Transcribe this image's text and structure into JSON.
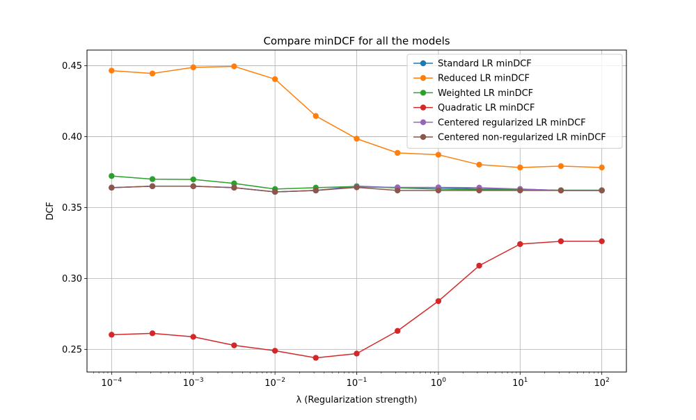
{
  "chart_data": {
    "type": "line",
    "title": "Compare minDCF for all the models",
    "xlabel": "λ (Regularization strength)",
    "ylabel": "DCF",
    "xscale": "log",
    "xlim": [
      5e-05,
      200
    ],
    "ylim": [
      0.234,
      0.461
    ],
    "grid": true,
    "legend_position": "top-right",
    "x": [
      0.0001,
      0.000316,
      0.001,
      0.00316,
      0.01,
      0.0316,
      0.1,
      0.316,
      1,
      3.16,
      10,
      31.6,
      100
    ],
    "xticks": [
      {
        "value": 0.0001,
        "base": "10",
        "exp": "−4"
      },
      {
        "value": 0.001,
        "base": "10",
        "exp": "−3"
      },
      {
        "value": 0.01,
        "base": "10",
        "exp": "−2"
      },
      {
        "value": 0.1,
        "base": "10",
        "exp": "−1"
      },
      {
        "value": 1,
        "base": "10",
        "exp": "0"
      },
      {
        "value": 10,
        "base": "10",
        "exp": "1"
      },
      {
        "value": 100,
        "base": "10",
        "exp": "2"
      }
    ],
    "yticks": [
      {
        "value": 0.25,
        "label": "0.25"
      },
      {
        "value": 0.3,
        "label": "0.30"
      },
      {
        "value": 0.35,
        "label": "0.35"
      },
      {
        "value": 0.4,
        "label": "0.40"
      },
      {
        "value": 0.45,
        "label": "0.45"
      }
    ],
    "series": [
      {
        "name": "Standard LR minDCF",
        "color": "#1f77b4",
        "values": [
          0.364,
          0.365,
          0.365,
          0.364,
          0.361,
          0.362,
          0.365,
          0.364,
          0.364,
          0.363,
          0.363,
          0.362,
          0.362
        ]
      },
      {
        "name": "Reduced LR minDCF",
        "color": "#ff7f0e",
        "values": [
          0.4465,
          0.4445,
          0.4488,
          0.4495,
          0.4405,
          0.4145,
          0.3985,
          0.3885,
          0.3872,
          0.3802,
          0.3782,
          0.3792,
          0.3782
        ]
      },
      {
        "name": "Weighted LR minDCF",
        "color": "#2ca02c",
        "values": [
          0.3722,
          0.37,
          0.3698,
          0.367,
          0.363,
          0.364,
          0.3648,
          0.3638,
          0.363,
          0.3625,
          0.3625,
          0.3622,
          0.3622
        ]
      },
      {
        "name": "Quadratic LR minDCF",
        "color": "#d62728",
        "values": [
          0.2603,
          0.2613,
          0.2588,
          0.2528,
          0.249,
          0.244,
          0.247,
          0.263,
          0.284,
          0.309,
          0.3242,
          0.3262,
          0.3262
        ]
      },
      {
        "name": "Centered regularized LR minDCF",
        "color": "#9467bd",
        "values": [
          0.364,
          0.365,
          0.365,
          0.364,
          0.361,
          0.362,
          0.3645,
          0.3642,
          0.3642,
          0.364,
          0.363,
          0.362,
          0.362
        ]
      },
      {
        "name": "Centered non-regularized LR minDCF",
        "color": "#8c564b",
        "values": [
          0.364,
          0.365,
          0.365,
          0.364,
          0.361,
          0.362,
          0.3642,
          0.362,
          0.362,
          0.362,
          0.362,
          0.362,
          0.362
        ]
      }
    ]
  }
}
